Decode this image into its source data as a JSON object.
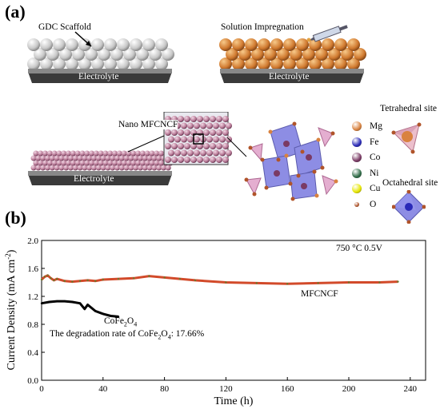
{
  "panel_a": {
    "label": "(a)",
    "gdc_scaffold": "GDC Scaffold",
    "solution_impregnation": "Solution Impregnation",
    "nano_mfcncf": "Nano MFCNCF",
    "electrolyte": "Electrolyte",
    "tetrahedral_site": "Tetrahedral site",
    "octahedral_site": "Octahedral site",
    "legend": [
      {
        "symbol": "Mg",
        "color": "#d9823f"
      },
      {
        "symbol": "Fe",
        "color": "#2a2ab8"
      },
      {
        "symbol": "Co",
        "color": "#7a3a64"
      },
      {
        "symbol": "Ni",
        "color": "#2f6b47"
      },
      {
        "symbol": "Cu",
        "color": "#e6e600"
      },
      {
        "symbol": "O",
        "color": "#b0542a"
      }
    ]
  },
  "panel_b": {
    "label": "(b)",
    "condition_text": "750 °C   0.5V",
    "mfcncf_label": "MFCNCF",
    "cofe_label_main": "CoFe",
    "cofe_sub1": "2",
    "cofe_mid": "O",
    "cofe_sub2": "4",
    "degradation_prefix": "The degradation rate of CoFe",
    "degradation_sub1": "2",
    "degradation_mid": "O",
    "degradation_sub2": "4",
    "degradation_suffix": ": 17.66%"
  },
  "chart_data": {
    "type": "line",
    "xlabel": "Time (h)",
    "ylabel": "Current Density (mA cm⁻²)",
    "xlim": [
      0,
      250
    ],
    "ylim": [
      0,
      2.0
    ],
    "xticks": [
      "0",
      "40",
      "80",
      "120",
      "160",
      "200",
      "240"
    ],
    "yticks": [
      "0.0",
      "0.4",
      "0.8",
      "1.2",
      "1.6",
      "2.0"
    ],
    "series": [
      {
        "name": "MFCNCF",
        "color": "#d24a2a",
        "x": [
          0,
          2,
          4,
          6,
          8,
          10,
          15,
          20,
          25,
          30,
          35,
          40,
          50,
          60,
          70,
          80,
          90,
          100,
          120,
          140,
          160,
          180,
          200,
          220,
          232
        ],
        "y": [
          1.44,
          1.48,
          1.5,
          1.46,
          1.43,
          1.45,
          1.42,
          1.41,
          1.42,
          1.43,
          1.42,
          1.44,
          1.45,
          1.46,
          1.49,
          1.47,
          1.45,
          1.43,
          1.4,
          1.39,
          1.38,
          1.39,
          1.4,
          1.4,
          1.41
        ]
      },
      {
        "name": "CoFe2O4",
        "color": "#000000",
        "x": [
          0,
          5,
          10,
          15,
          20,
          25,
          28,
          30,
          35,
          40,
          45,
          50
        ],
        "y": [
          1.1,
          1.12,
          1.13,
          1.13,
          1.12,
          1.1,
          1.02,
          1.08,
          0.99,
          0.95,
          0.92,
          0.91
        ]
      }
    ]
  }
}
